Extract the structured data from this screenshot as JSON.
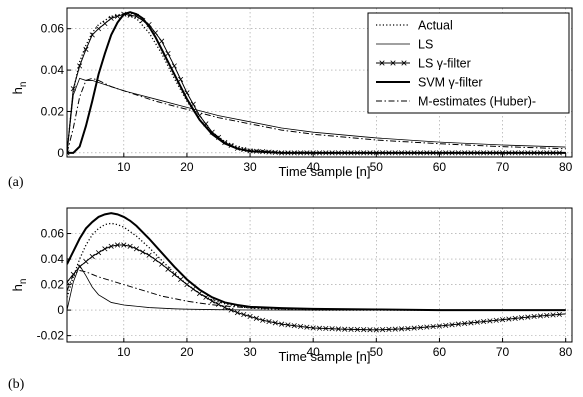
{
  "chart_data": [
    {
      "type": "line",
      "panel_label": "(a)",
      "xlabel": "Time sample [n]",
      "ylabel": "h",
      "ylabel_sub": "n",
      "xlim": [
        1,
        81
      ],
      "ylim": [
        -0.002,
        0.07
      ],
      "xticks": [
        "10",
        "20",
        "30",
        "40",
        "50",
        "60",
        "70",
        "80"
      ],
      "yticks": [
        "0",
        "0.02",
        "0.04",
        "0.06"
      ],
      "grid": true,
      "legend": {
        "placement": "top-right",
        "entries": [
          "Actual",
          "LS",
          "LS γ-filter",
          "SVM γ-filter",
          "M-estimates (Huber)-"
        ]
      },
      "series": [
        {
          "name": "Actual",
          "style": "dotted",
          "x": [
            1,
            2,
            3,
            4,
            5,
            6,
            8,
            10,
            12,
            14,
            16,
            18,
            20,
            22,
            24,
            26,
            28,
            30,
            35,
            40,
            50,
            60,
            70,
            80
          ],
          "y": [
            0,
            0.03,
            0.044,
            0.052,
            0.058,
            0.062,
            0.066,
            0.067,
            0.065,
            0.058,
            0.048,
            0.036,
            0.025,
            0.016,
            0.01,
            0.0055,
            0.003,
            0.0015,
            0.0005,
            0.0002,
            0,
            0,
            0,
            0
          ]
        },
        {
          "name": "LS",
          "style": "thin",
          "x": [
            1,
            2,
            3,
            4,
            5,
            6,
            8,
            10,
            15,
            20,
            25,
            30,
            35,
            40,
            50,
            60,
            70,
            80
          ],
          "y": [
            0,
            0.028,
            0.036,
            0.035,
            0.035,
            0.034,
            0.032,
            0.03,
            0.026,
            0.022,
            0.018,
            0.015,
            0.012,
            0.01,
            0.0072,
            0.0052,
            0.0038,
            0.0028
          ]
        },
        {
          "name": "LS γ-filter",
          "style": "cross",
          "x": [
            1,
            2,
            3,
            4,
            5,
            6,
            8,
            10,
            12,
            14,
            16,
            18,
            20,
            22,
            24,
            26,
            28,
            30,
            35,
            40,
            50,
            60,
            70,
            80
          ],
          "y": [
            0,
            0.031,
            0.042,
            0.05,
            0.057,
            0.06,
            0.065,
            0.067,
            0.066,
            0.062,
            0.054,
            0.042,
            0.029,
            0.018,
            0.01,
            0.005,
            0.0022,
            0.001,
            0,
            0,
            0,
            0,
            0,
            0
          ]
        },
        {
          "name": "SVM γ-filter",
          "style": "thick",
          "x": [
            1,
            2,
            3,
            4,
            5,
            6,
            7,
            8,
            9,
            10,
            11,
            12,
            13,
            14,
            15,
            16,
            18,
            20,
            22,
            24,
            26,
            28,
            30,
            35,
            40,
            50,
            60,
            70,
            80
          ],
          "y": [
            0,
            0,
            0.003,
            0.013,
            0.025,
            0.038,
            0.048,
            0.057,
            0.063,
            0.067,
            0.068,
            0.067,
            0.065,
            0.061,
            0.056,
            0.05,
            0.038,
            0.026,
            0.016,
            0.009,
            0.0045,
            0.002,
            0.0008,
            0,
            0,
            0,
            0,
            0,
            0
          ]
        },
        {
          "name": "M-estimates (Huber)-",
          "style": "dashdot",
          "x": [
            1,
            2,
            3,
            4,
            5,
            6,
            8,
            10,
            15,
            20,
            25,
            30,
            35,
            40,
            50,
            60,
            70,
            80
          ],
          "y": [
            0,
            0.012,
            0.027,
            0.035,
            0.036,
            0.035,
            0.032,
            0.03,
            0.025,
            0.021,
            0.017,
            0.014,
            0.011,
            0.009,
            0.0062,
            0.0044,
            0.003,
            0.002
          ]
        }
      ]
    },
    {
      "type": "line",
      "panel_label": "(b)",
      "xlabel": "Time sample [n]",
      "ylabel": "h",
      "ylabel_sub": "n",
      "xlim": [
        1,
        81
      ],
      "ylim": [
        -0.025,
        0.08
      ],
      "xticks": [
        "10",
        "20",
        "30",
        "40",
        "50",
        "60",
        "70",
        "80"
      ],
      "yticks": [
        "-0.02",
        "0",
        "0.02",
        "0.04",
        "0.06"
      ],
      "grid": true,
      "series": [
        {
          "name": "Actual",
          "style": "dotted",
          "x": [
            1,
            2,
            3,
            4,
            5,
            6,
            7,
            8,
            9,
            10,
            12,
            14,
            16,
            18,
            20,
            22,
            24,
            26,
            28,
            30,
            35,
            40,
            50,
            60,
            70,
            80
          ],
          "y": [
            0.01,
            0.026,
            0.04,
            0.051,
            0.059,
            0.064,
            0.067,
            0.068,
            0.067,
            0.065,
            0.058,
            0.049,
            0.039,
            0.029,
            0.02,
            0.013,
            0.008,
            0.005,
            0.003,
            0.0015,
            0.0005,
            0,
            0,
            0,
            0,
            0
          ]
        },
        {
          "name": "LS",
          "style": "thin",
          "x": [
            1,
            2,
            3,
            4,
            5,
            6,
            7,
            8,
            10,
            12,
            14,
            16,
            18,
            20,
            25,
            30,
            40,
            50,
            60,
            70,
            80
          ],
          "y": [
            0.0,
            0.022,
            0.035,
            0.027,
            0.018,
            0.012,
            0.009,
            0.006,
            0.004,
            0.003,
            0.002,
            0.0015,
            0.001,
            0.0007,
            0.0003,
            0.0001,
            0,
            0,
            0,
            0,
            0
          ]
        },
        {
          "name": "LS γ-filter",
          "style": "cross",
          "x": [
            1,
            2,
            3,
            4,
            5,
            6,
            7,
            8,
            9,
            10,
            11,
            12,
            14,
            16,
            18,
            20,
            22,
            24,
            26,
            28,
            30,
            32,
            35,
            40,
            45,
            50,
            55,
            60,
            65,
            70,
            75,
            80
          ],
          "y": [
            0.022,
            0.028,
            0.034,
            0.038,
            0.042,
            0.045,
            0.048,
            0.05,
            0.051,
            0.051,
            0.05,
            0.048,
            0.043,
            0.036,
            0.028,
            0.02,
            0.013,
            0.007,
            0.002,
            -0.002,
            -0.005,
            -0.008,
            -0.011,
            -0.014,
            -0.015,
            -0.0155,
            -0.0145,
            -0.0125,
            -0.01,
            -0.0075,
            -0.005,
            -0.003
          ]
        },
        {
          "name": "SVM γ-filter",
          "style": "thick",
          "x": [
            1,
            2,
            3,
            4,
            5,
            6,
            7,
            8,
            9,
            10,
            11,
            12,
            14,
            16,
            18,
            20,
            22,
            24,
            26,
            28,
            30,
            35,
            40,
            50,
            60,
            70,
            80
          ],
          "y": [
            0.036,
            0.046,
            0.056,
            0.064,
            0.069,
            0.073,
            0.075,
            0.076,
            0.075,
            0.073,
            0.07,
            0.066,
            0.056,
            0.045,
            0.034,
            0.024,
            0.016,
            0.01,
            0.006,
            0.004,
            0.0025,
            0.0015,
            0.001,
            0.0005,
            0,
            0,
            0
          ]
        },
        {
          "name": "M-estimates (Huber)-",
          "style": "dashdot",
          "x": [
            1,
            2,
            3,
            4,
            5,
            6,
            8,
            10,
            12,
            14,
            16,
            18,
            20,
            22,
            24,
            26,
            28,
            30,
            35,
            40,
            50,
            60,
            70,
            80
          ],
          "y": [
            0.015,
            0.028,
            0.031,
            0.03,
            0.028,
            0.026,
            0.023,
            0.02,
            0.017,
            0.014,
            0.011,
            0.009,
            0.007,
            0.0055,
            0.0042,
            0.0032,
            0.0024,
            0.0018,
            0.001,
            0.0006,
            0.0002,
            0,
            0,
            0
          ]
        }
      ]
    }
  ]
}
